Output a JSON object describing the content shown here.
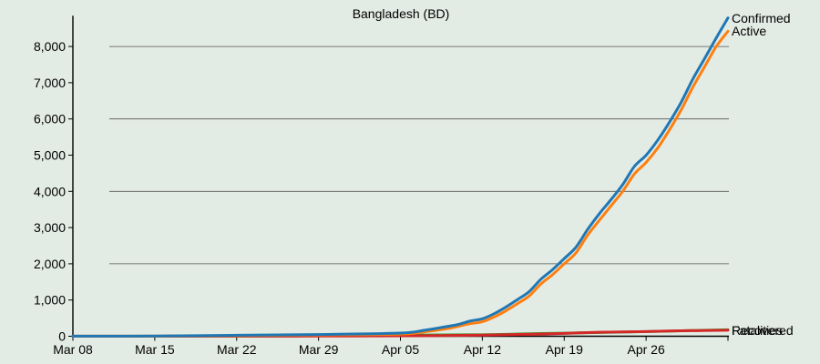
{
  "chart_data": {
    "type": "line",
    "title": "Bangladesh (BD)",
    "xlabel": "",
    "ylabel": "",
    "x_start": "Mar 08",
    "x_end": "May 01",
    "x_ticks": [
      {
        "label": "Mar 08",
        "day": 0
      },
      {
        "label": "Mar 15",
        "day": 7
      },
      {
        "label": "Mar 22",
        "day": 14
      },
      {
        "label": "Mar 29",
        "day": 21
      },
      {
        "label": "Apr 05",
        "day": 28
      },
      {
        "label": "Apr 12",
        "day": 35
      },
      {
        "label": "Apr 19",
        "day": 42
      },
      {
        "label": "Apr 26",
        "day": 49
      }
    ],
    "ylim": [
      0,
      9000
    ],
    "y_ticks": [
      0,
      1000,
      2000,
      3000,
      4000,
      5000,
      6000,
      7000,
      8000
    ],
    "y_tick_labels": [
      "0",
      "1,000",
      "2,000",
      "3,000",
      "4,000",
      "5,000",
      "6,000",
      "7,000",
      "8,000"
    ],
    "gridlines": [
      2000,
      4000,
      6000,
      8000
    ],
    "series": [
      {
        "name": "Confirmed",
        "color": "#1f77b4",
        "points": [
          [
            0,
            3
          ],
          [
            7,
            5
          ],
          [
            14,
            27
          ],
          [
            21,
            48
          ],
          [
            28,
            88
          ],
          [
            30,
            164
          ],
          [
            32,
            270
          ],
          [
            33,
            330
          ],
          [
            34,
            424
          ],
          [
            35,
            482
          ],
          [
            36,
            621
          ],
          [
            37,
            803
          ],
          [
            38,
            1012
          ],
          [
            39,
            1231
          ],
          [
            40,
            1572
          ],
          [
            41,
            1838
          ],
          [
            42,
            2144
          ],
          [
            43,
            2456
          ],
          [
            44,
            2948
          ],
          [
            45,
            3382
          ],
          [
            46,
            3772
          ],
          [
            47,
            4186
          ],
          [
            48,
            4689
          ],
          [
            49,
            4998
          ],
          [
            50,
            5416
          ],
          [
            51,
            5913
          ],
          [
            52,
            6462
          ],
          [
            53,
            7103
          ],
          [
            54,
            7667
          ],
          [
            55,
            8238
          ],
          [
            56,
            8790
          ]
        ]
      },
      {
        "name": "Active",
        "color": "#ff7f0e",
        "points": [
          [
            0,
            3
          ],
          [
            7,
            3
          ],
          [
            14,
            20
          ],
          [
            21,
            35
          ],
          [
            28,
            60
          ],
          [
            30,
            120
          ],
          [
            32,
            210
          ],
          [
            33,
            280
          ],
          [
            34,
            350
          ],
          [
            35,
            400
          ],
          [
            36,
            530
          ],
          [
            37,
            700
          ],
          [
            38,
            900
          ],
          [
            39,
            1110
          ],
          [
            40,
            1440
          ],
          [
            41,
            1700
          ],
          [
            42,
            2000
          ],
          [
            43,
            2300
          ],
          [
            44,
            2790
          ],
          [
            45,
            3200
          ],
          [
            46,
            3600
          ],
          [
            47,
            4000
          ],
          [
            48,
            4480
          ],
          [
            49,
            4800
          ],
          [
            50,
            5200
          ],
          [
            51,
            5700
          ],
          [
            52,
            6250
          ],
          [
            53,
            6880
          ],
          [
            54,
            7440
          ],
          [
            55,
            8000
          ],
          [
            56,
            8420
          ]
        ]
      },
      {
        "name": "Recovered",
        "color": "#2ca02c",
        "points": [
          [
            0,
            0
          ],
          [
            14,
            3
          ],
          [
            21,
            15
          ],
          [
            28,
            33
          ],
          [
            35,
            42
          ],
          [
            40,
            75
          ],
          [
            42,
            85
          ],
          [
            45,
            105
          ],
          [
            49,
            130
          ],
          [
            52,
            150
          ],
          [
            56,
            180
          ]
        ]
      },
      {
        "name": "Fatalities",
        "color": "#d62728",
        "points": [
          [
            0,
            0
          ],
          [
            14,
            2
          ],
          [
            21,
            5
          ],
          [
            28,
            12
          ],
          [
            35,
            30
          ],
          [
            40,
            60
          ],
          [
            42,
            80
          ],
          [
            45,
            110
          ],
          [
            49,
            130
          ],
          [
            52,
            150
          ],
          [
            56,
            168
          ]
        ]
      }
    ],
    "end_labels": [
      "Confirmed",
      "Active",
      "Recovered",
      "Fatalities"
    ]
  }
}
